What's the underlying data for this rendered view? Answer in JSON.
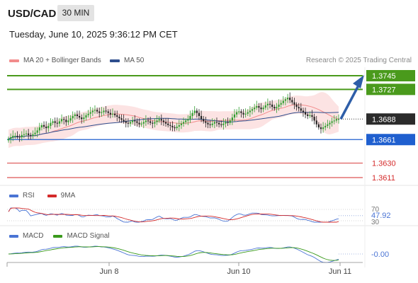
{
  "header": {
    "symbol": "USD/CAD",
    "timeframe": "30 MIN",
    "datetime": "Tuesday, June 10, 2025 9:36:12 PM CET"
  },
  "legend": {
    "ma20": {
      "label": "MA 20 + Bollinger Bands",
      "color": "#f28c8c"
    },
    "ma50": {
      "label": "MA 50",
      "color": "#2e4e8e"
    },
    "credit": "Research © 2025 Trading Central"
  },
  "chart_data": {
    "type": "candlestick",
    "price_range": [
      1.3595,
      1.3755
    ],
    "last_price": {
      "value": 1.3688,
      "label": "1.3688"
    },
    "levels": [
      {
        "value": 1.3745,
        "label": "1.3745",
        "kind": "resistance",
        "color": "#4a9a1c"
      },
      {
        "value": 1.3727,
        "label": "1.3727",
        "kind": "resistance",
        "color": "#4a9a1c"
      },
      {
        "value": 1.3661,
        "label": "1.3661",
        "kind": "pivot",
        "color": "#1f5fcf"
      },
      {
        "value": 1.363,
        "label": "1.3630",
        "kind": "support",
        "color": "#d42a2a"
      },
      {
        "value": 1.3611,
        "label": "1.3611",
        "kind": "support",
        "color": "#d42a2a"
      }
    ],
    "arrow": {
      "from": 1.3688,
      "to": 1.3745,
      "color": "#2e5ea8"
    },
    "x_labels": [
      "Jun 8",
      "Jun 10",
      "Jun 11"
    ],
    "close": [
      1.3662,
      1.3664,
      1.3666,
      1.3666,
      1.3665,
      1.3664,
      1.3667,
      1.3668,
      1.3669,
      1.3667,
      1.3666,
      1.3668,
      1.367,
      1.3673,
      1.3677,
      1.368,
      1.3678,
      1.3676,
      1.3679,
      1.3683,
      1.3685,
      1.3683,
      1.3682,
      1.3685,
      1.3688,
      1.3687,
      1.3684,
      1.3686,
      1.3689,
      1.3692,
      1.3694,
      1.3692,
      1.369,
      1.3688,
      1.369,
      1.3693,
      1.3695,
      1.3697,
      1.3699,
      1.37,
      1.3698,
      1.3696,
      1.3697,
      1.3699,
      1.3698,
      1.3696,
      1.3694,
      1.3695,
      1.3693,
      1.3691,
      1.3689,
      1.3687,
      1.3685,
      1.3683,
      1.3682,
      1.3684,
      1.3686,
      1.3685,
      1.3683,
      1.3681,
      1.3682,
      1.3684,
      1.3686,
      1.3685,
      1.3683,
      1.3682,
      1.3684,
      1.3686,
      1.3688,
      1.3686,
      1.3684,
      1.3682,
      1.368,
      1.3679,
      1.3677,
      1.3676,
      1.3678,
      1.368,
      1.3682,
      1.3684,
      1.3686,
      1.3688,
      1.3692,
      1.3696,
      1.3699,
      1.3696,
      1.3692,
      1.3688,
      1.3685,
      1.3683,
      1.3681,
      1.368,
      1.3682,
      1.3684,
      1.3683,
      1.3681,
      1.368,
      1.3682,
      1.3684,
      1.3683,
      1.3686,
      1.369,
      1.3694,
      1.3697,
      1.3698,
      1.3696,
      1.3694,
      1.3695,
      1.3697,
      1.3699,
      1.3701,
      1.3703,
      1.3705,
      1.3703,
      1.3701,
      1.3703,
      1.3706,
      1.3708,
      1.3707,
      1.3704,
      1.3702,
      1.3704,
      1.3707,
      1.3709,
      1.3712,
      1.3714,
      1.3716,
      1.3713,
      1.371,
      1.3707,
      1.3704,
      1.3702,
      1.3699,
      1.3697,
      1.3694,
      1.3692,
      1.3693,
      1.3691,
      1.3686,
      1.3681,
      1.3677,
      1.3675,
      1.3677,
      1.3679,
      1.3681,
      1.3683,
      1.3685,
      1.3686,
      1.3688,
      1.3688
    ],
    "rsi": {
      "value": "47.92",
      "upper": "70",
      "lower": "30",
      "label": "RSI",
      "ma_label": "9MA",
      "color": "#4a74d4",
      "ma_color": "#d42a2a"
    },
    "macd": {
      "value": "-0.00",
      "label": "MACD",
      "signal_label": "MACD Signal",
      "color": "#4a74d4",
      "signal_color": "#3a9a1c"
    }
  }
}
